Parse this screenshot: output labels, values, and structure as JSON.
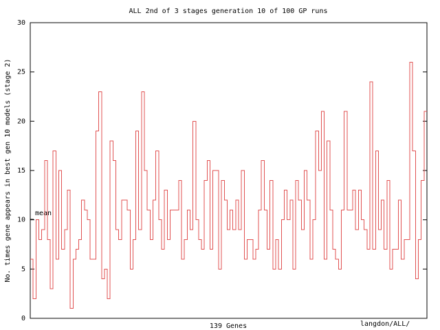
{
  "chart_data": {
    "type": "line",
    "step": true,
    "title": "ALL 2nd of 3 stages generation 10 of 100 GP runs",
    "xlabel": "139 Genes",
    "ylabel": "No. times gene appears in best gen 10 models (stage 2)",
    "corner_note": "langdon/ALL/",
    "legend_label": "mean",
    "mean_value": 10,
    "ylim": [
      0,
      30
    ],
    "xlim": [
      0,
      139
    ],
    "yticks": [
      0,
      5,
      10,
      15,
      20,
      25,
      30
    ],
    "grid": false,
    "series": [
      {
        "color": "#e05050",
        "values": [
          6,
          2,
          10,
          8,
          9,
          16,
          8,
          3,
          17,
          6,
          15,
          7,
          9,
          13,
          1,
          6,
          7,
          8,
          12,
          11,
          10,
          6,
          6,
          19,
          23,
          4,
          5,
          2,
          18,
          16,
          9,
          8,
          12,
          12,
          11,
          5,
          8,
          19,
          9,
          23,
          15,
          11,
          8,
          12,
          17,
          10,
          7,
          13,
          8,
          11,
          11,
          11,
          14,
          6,
          8,
          11,
          9,
          20,
          10,
          8,
          7,
          14,
          16,
          7,
          15,
          15,
          5,
          14,
          12,
          9,
          11,
          9,
          12,
          9,
          15,
          6,
          8,
          8,
          6,
          7,
          11,
          16,
          11,
          7,
          14,
          5,
          8,
          5,
          10,
          13,
          10,
          12,
          5,
          14,
          12,
          9,
          15,
          12,
          6,
          10,
          19,
          15,
          21,
          6,
          18,
          11,
          7,
          6,
          5,
          11,
          21,
          11,
          11,
          13,
          9,
          13,
          10,
          9,
          7,
          24,
          7,
          17,
          9,
          12,
          7,
          14,
          5,
          7,
          7,
          12,
          6,
          8,
          8,
          26,
          17,
          4,
          8,
          14,
          21
        ]
      }
    ]
  }
}
